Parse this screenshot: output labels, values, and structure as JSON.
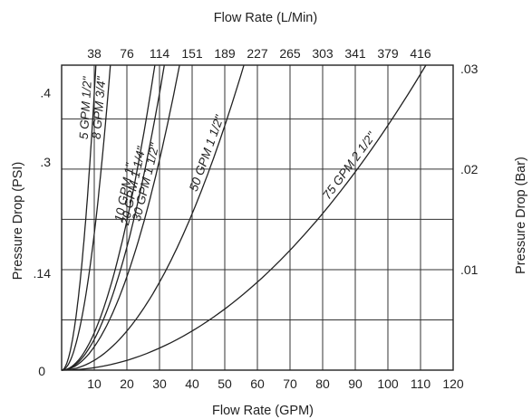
{
  "chart_data": {
    "type": "line",
    "x_label_bottom": "Flow Rate (GPM)",
    "x_label_top": "Flow Rate (L/Min)",
    "y_label_left": "Pressure Drop (PSI)",
    "y_label_right": "Pressure Drop (Bar)",
    "x_range": [
      0,
      120
    ],
    "y_range": [
      0,
      0.44
    ],
    "x_ticks_bottom": [
      "10",
      "20",
      "30",
      "40",
      "50",
      "60",
      "70",
      "80",
      "90",
      "100",
      "110",
      "120"
    ],
    "x_ticks_top": [
      "38",
      "76",
      "114",
      "151",
      "189",
      "227",
      "265",
      "303",
      "341",
      "379",
      "416"
    ],
    "y_ticks_left": [
      {
        "value": 0,
        "label": "0"
      },
      {
        "value": 0.14,
        "label": ".14"
      },
      {
        "value": 0.3,
        "label": ".3"
      },
      {
        "value": 0.4,
        "label": ".4"
      }
    ],
    "y_ticks_right": [
      {
        "value": 0.145,
        "label": ".01"
      },
      {
        "value": 0.29,
        "label": ".02"
      },
      {
        "value": 0.435,
        "label": ".03"
      }
    ],
    "grid": true,
    "series": [
      {
        "name": "5 GPM 1/2\"",
        "k": 0.00399
      },
      {
        "name": "8 GPM 3/4\"",
        "k": 0.00197
      },
      {
        "name": "10 GPM 1\"",
        "k": 0.000539
      },
      {
        "name": "20 GPM 1 1/4\"",
        "k": 0.000444
      },
      {
        "name": "30 GPM 1 1/2\"",
        "k": 0.000337
      },
      {
        "name": "50 GPM 1 1/2\"",
        "k": 0.000141
      },
      {
        "name": "75 GPM 2 1/2\"",
        "k": 3.53e-05
      }
    ]
  }
}
